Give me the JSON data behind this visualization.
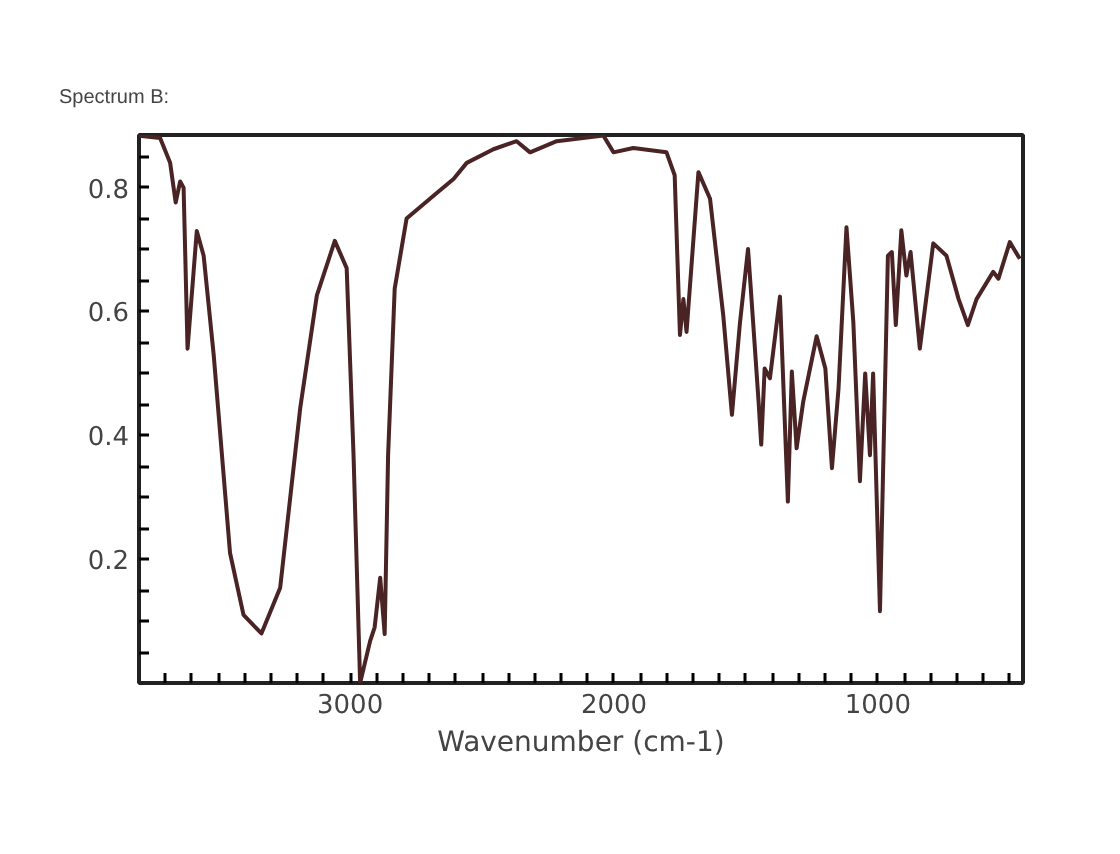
{
  "chart_data": {
    "type": "line",
    "title": "Spectrum B:",
    "xlabel": "Wavenumber (cm-1)",
    "x": [
      3800,
      3720,
      3682,
      3661,
      3644,
      3631,
      3616,
      3581,
      3555,
      3517,
      3455,
      3404,
      3336,
      3265,
      3189,
      3126,
      3058,
      3013,
      2987,
      2962,
      2924,
      2907,
      2886,
      2869,
      2856,
      2831,
      2786,
      2684,
      2608,
      2558,
      2457,
      2369,
      2318,
      2217,
      2040,
      2002,
      1927,
      1801,
      1770,
      1750,
      1737,
      1725,
      1680,
      1636,
      1586,
      1553,
      1523,
      1492,
      1472,
      1452,
      1442,
      1429,
      1409,
      1371,
      1341,
      1326,
      1308,
      1283,
      1232,
      1199,
      1174,
      1149,
      1119,
      1093,
      1068,
      1048,
      1030,
      1018,
      992,
      962,
      947,
      932,
      911,
      892,
      876,
      841,
      790,
      740,
      694,
      659,
      626,
      563,
      543,
      500,
      462
    ],
    "series": [
      {
        "color": "#4a2424",
        "values": [
          0.884,
          0.88,
          0.84,
          0.776,
          0.81,
          0.8,
          0.54,
          0.73,
          0.69,
          0.53,
          0.21,
          0.11,
          0.08,
          0.154,
          0.444,
          0.626,
          0.714,
          0.67,
          0.368,
          0.0,
          0.068,
          0.09,
          0.17,
          0.079,
          0.368,
          0.637,
          0.75,
          0.787,
          0.814,
          0.84,
          0.862,
          0.875,
          0.857,
          0.875,
          0.884,
          0.857,
          0.864,
          0.857,
          0.82,
          0.562,
          0.62,
          0.567,
          0.825,
          0.782,
          0.594,
          0.433,
          0.58,
          0.701,
          0.578,
          0.454,
          0.385,
          0.508,
          0.492,
          0.624,
          0.293,
          0.503,
          0.379,
          0.454,
          0.56,
          0.508,
          0.347,
          0.476,
          0.736,
          0.583,
          0.326,
          0.5,
          0.368,
          0.5,
          0.116,
          0.69,
          0.696,
          0.578,
          0.731,
          0.658,
          0.696,
          0.54,
          0.71,
          0.69,
          0.62,
          0.578,
          0.62,
          0.664,
          0.653,
          0.712,
          0.685
        ]
      }
    ],
    "xlim": [
      3800,
      450
    ],
    "ylim": [
      0,
      0.885
    ],
    "xticks": [
      {
        "value": 3700,
        "label": null
      },
      {
        "value": 3600,
        "label": null
      },
      {
        "value": 3500,
        "label": null
      },
      {
        "value": 3400,
        "label": null
      },
      {
        "value": 3300,
        "label": null
      },
      {
        "value": 3200,
        "label": null
      },
      {
        "value": 3100,
        "label": null
      },
      3000,
      {
        "value": 2900,
        "label": null
      },
      {
        "value": 2800,
        "label": null
      },
      {
        "value": 2700,
        "label": null
      },
      {
        "value": 2600,
        "label": null
      },
      {
        "value": 2500,
        "label": null
      },
      {
        "value": 2400,
        "label": null
      },
      {
        "value": 2300,
        "label": null
      },
      {
        "value": 2200,
        "label": null
      },
      {
        "value": 2100,
        "label": null
      },
      2000,
      {
        "value": 1900,
        "label": null
      },
      {
        "value": 1800,
        "label": null
      },
      {
        "value": 1700,
        "label": null
      },
      {
        "value": 1600,
        "label": null
      },
      {
        "value": 1500,
        "label": null
      },
      {
        "value": 1400,
        "label": null
      },
      {
        "value": 1300,
        "label": null
      },
      {
        "value": 1200,
        "label": null
      },
      {
        "value": 1100,
        "label": null
      },
      1000,
      {
        "value": 900,
        "label": null
      },
      {
        "value": 800,
        "label": null
      },
      {
        "value": 700,
        "label": null
      },
      {
        "value": 600,
        "label": null
      },
      {
        "value": 500,
        "label": null
      }
    ],
    "yticks": [
      {
        "value": 0.05,
        "label": null
      },
      {
        "value": 0.1,
        "label": null
      },
      {
        "value": 0.15,
        "label": null
      },
      0.2,
      {
        "value": 0.25,
        "label": null
      },
      {
        "value": 0.3,
        "label": null
      },
      {
        "value": 0.35,
        "label": null
      },
      0.4,
      {
        "value": 0.45,
        "label": null
      },
      {
        "value": 0.5,
        "label": null
      },
      {
        "value": 0.55,
        "label": null
      },
      0.6,
      {
        "value": 0.65,
        "label": null
      },
      {
        "value": 0.7,
        "label": null
      },
      {
        "value": 0.75,
        "label": null
      },
      0.8,
      {
        "value": 0.85,
        "label": null
      }
    ],
    "grid": false,
    "line_style": "solid"
  }
}
